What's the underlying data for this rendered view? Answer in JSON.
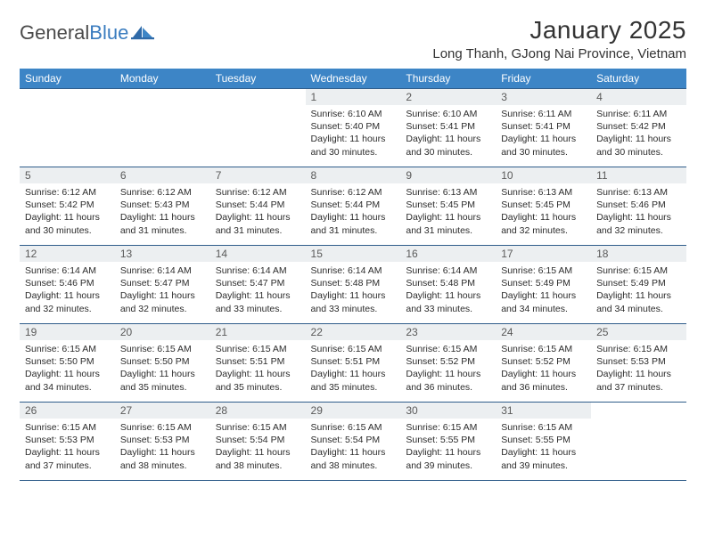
{
  "brand": {
    "part1": "General",
    "part2": "Blue"
  },
  "title": "January 2025",
  "location": "Long Thanh, GJong Nai Province, Vietnam",
  "colors": {
    "header_bg": "#3d85c6",
    "header_text": "#ffffff",
    "daynum_bg": "#eceff1",
    "row_border": "#2f5c8a",
    "brand_gray": "#4a4a4a",
    "brand_blue": "#3a7cbf"
  },
  "day_headers": [
    "Sunday",
    "Monday",
    "Tuesday",
    "Wednesday",
    "Thursday",
    "Friday",
    "Saturday"
  ],
  "cells": [
    {
      "n": "",
      "sr": "",
      "ss": "",
      "d1": "",
      "d2": "",
      "empty": true
    },
    {
      "n": "",
      "sr": "",
      "ss": "",
      "d1": "",
      "d2": "",
      "empty": true
    },
    {
      "n": "",
      "sr": "",
      "ss": "",
      "d1": "",
      "d2": "",
      "empty": true
    },
    {
      "n": "1",
      "sr": "Sunrise: 6:10 AM",
      "ss": "Sunset: 5:40 PM",
      "d1": "Daylight: 11 hours",
      "d2": "and 30 minutes."
    },
    {
      "n": "2",
      "sr": "Sunrise: 6:10 AM",
      "ss": "Sunset: 5:41 PM",
      "d1": "Daylight: 11 hours",
      "d2": "and 30 minutes."
    },
    {
      "n": "3",
      "sr": "Sunrise: 6:11 AM",
      "ss": "Sunset: 5:41 PM",
      "d1": "Daylight: 11 hours",
      "d2": "and 30 minutes."
    },
    {
      "n": "4",
      "sr": "Sunrise: 6:11 AM",
      "ss": "Sunset: 5:42 PM",
      "d1": "Daylight: 11 hours",
      "d2": "and 30 minutes."
    },
    {
      "n": "5",
      "sr": "Sunrise: 6:12 AM",
      "ss": "Sunset: 5:42 PM",
      "d1": "Daylight: 11 hours",
      "d2": "and 30 minutes."
    },
    {
      "n": "6",
      "sr": "Sunrise: 6:12 AM",
      "ss": "Sunset: 5:43 PM",
      "d1": "Daylight: 11 hours",
      "d2": "and 31 minutes."
    },
    {
      "n": "7",
      "sr": "Sunrise: 6:12 AM",
      "ss": "Sunset: 5:44 PM",
      "d1": "Daylight: 11 hours",
      "d2": "and 31 minutes."
    },
    {
      "n": "8",
      "sr": "Sunrise: 6:12 AM",
      "ss": "Sunset: 5:44 PM",
      "d1": "Daylight: 11 hours",
      "d2": "and 31 minutes."
    },
    {
      "n": "9",
      "sr": "Sunrise: 6:13 AM",
      "ss": "Sunset: 5:45 PM",
      "d1": "Daylight: 11 hours",
      "d2": "and 31 minutes."
    },
    {
      "n": "10",
      "sr": "Sunrise: 6:13 AM",
      "ss": "Sunset: 5:45 PM",
      "d1": "Daylight: 11 hours",
      "d2": "and 32 minutes."
    },
    {
      "n": "11",
      "sr": "Sunrise: 6:13 AM",
      "ss": "Sunset: 5:46 PM",
      "d1": "Daylight: 11 hours",
      "d2": "and 32 minutes."
    },
    {
      "n": "12",
      "sr": "Sunrise: 6:14 AM",
      "ss": "Sunset: 5:46 PM",
      "d1": "Daylight: 11 hours",
      "d2": "and 32 minutes."
    },
    {
      "n": "13",
      "sr": "Sunrise: 6:14 AM",
      "ss": "Sunset: 5:47 PM",
      "d1": "Daylight: 11 hours",
      "d2": "and 32 minutes."
    },
    {
      "n": "14",
      "sr": "Sunrise: 6:14 AM",
      "ss": "Sunset: 5:47 PM",
      "d1": "Daylight: 11 hours",
      "d2": "and 33 minutes."
    },
    {
      "n": "15",
      "sr": "Sunrise: 6:14 AM",
      "ss": "Sunset: 5:48 PM",
      "d1": "Daylight: 11 hours",
      "d2": "and 33 minutes."
    },
    {
      "n": "16",
      "sr": "Sunrise: 6:14 AM",
      "ss": "Sunset: 5:48 PM",
      "d1": "Daylight: 11 hours",
      "d2": "and 33 minutes."
    },
    {
      "n": "17",
      "sr": "Sunrise: 6:15 AM",
      "ss": "Sunset: 5:49 PM",
      "d1": "Daylight: 11 hours",
      "d2": "and 34 minutes."
    },
    {
      "n": "18",
      "sr": "Sunrise: 6:15 AM",
      "ss": "Sunset: 5:49 PM",
      "d1": "Daylight: 11 hours",
      "d2": "and 34 minutes."
    },
    {
      "n": "19",
      "sr": "Sunrise: 6:15 AM",
      "ss": "Sunset: 5:50 PM",
      "d1": "Daylight: 11 hours",
      "d2": "and 34 minutes."
    },
    {
      "n": "20",
      "sr": "Sunrise: 6:15 AM",
      "ss": "Sunset: 5:50 PM",
      "d1": "Daylight: 11 hours",
      "d2": "and 35 minutes."
    },
    {
      "n": "21",
      "sr": "Sunrise: 6:15 AM",
      "ss": "Sunset: 5:51 PM",
      "d1": "Daylight: 11 hours",
      "d2": "and 35 minutes."
    },
    {
      "n": "22",
      "sr": "Sunrise: 6:15 AM",
      "ss": "Sunset: 5:51 PM",
      "d1": "Daylight: 11 hours",
      "d2": "and 35 minutes."
    },
    {
      "n": "23",
      "sr": "Sunrise: 6:15 AM",
      "ss": "Sunset: 5:52 PM",
      "d1": "Daylight: 11 hours",
      "d2": "and 36 minutes."
    },
    {
      "n": "24",
      "sr": "Sunrise: 6:15 AM",
      "ss": "Sunset: 5:52 PM",
      "d1": "Daylight: 11 hours",
      "d2": "and 36 minutes."
    },
    {
      "n": "25",
      "sr": "Sunrise: 6:15 AM",
      "ss": "Sunset: 5:53 PM",
      "d1": "Daylight: 11 hours",
      "d2": "and 37 minutes."
    },
    {
      "n": "26",
      "sr": "Sunrise: 6:15 AM",
      "ss": "Sunset: 5:53 PM",
      "d1": "Daylight: 11 hours",
      "d2": "and 37 minutes."
    },
    {
      "n": "27",
      "sr": "Sunrise: 6:15 AM",
      "ss": "Sunset: 5:53 PM",
      "d1": "Daylight: 11 hours",
      "d2": "and 38 minutes."
    },
    {
      "n": "28",
      "sr": "Sunrise: 6:15 AM",
      "ss": "Sunset: 5:54 PM",
      "d1": "Daylight: 11 hours",
      "d2": "and 38 minutes."
    },
    {
      "n": "29",
      "sr": "Sunrise: 6:15 AM",
      "ss": "Sunset: 5:54 PM",
      "d1": "Daylight: 11 hours",
      "d2": "and 38 minutes."
    },
    {
      "n": "30",
      "sr": "Sunrise: 6:15 AM",
      "ss": "Sunset: 5:55 PM",
      "d1": "Daylight: 11 hours",
      "d2": "and 39 minutes."
    },
    {
      "n": "31",
      "sr": "Sunrise: 6:15 AM",
      "ss": "Sunset: 5:55 PM",
      "d1": "Daylight: 11 hours",
      "d2": "and 39 minutes."
    },
    {
      "n": "",
      "sr": "",
      "ss": "",
      "d1": "",
      "d2": "",
      "empty": true
    }
  ]
}
